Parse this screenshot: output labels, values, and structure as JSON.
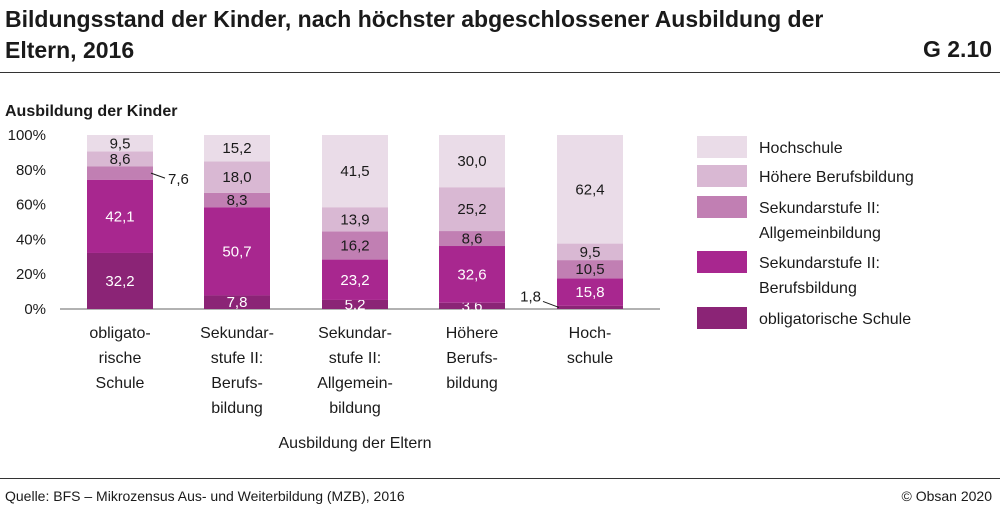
{
  "header": {
    "title": "Bildungsstand der Kinder, nach höchster abgeschlossener Ausbildung der Eltern, 2016",
    "code": "G 2.10"
  },
  "footer": {
    "source": "Quelle: BFS – Mikrozensus Aus- und Weiterbildung (MZB), 2016",
    "copyright": "© Obsan 2020"
  },
  "chart_data": {
    "type": "bar",
    "stacked": true,
    "ylabel": "Ausbildung der Kinder",
    "xlabel": "Ausbildung der Eltern",
    "ylim": [
      0,
      100
    ],
    "yticks": [
      "0%",
      "20%",
      "40%",
      "60%",
      "80%",
      "100%"
    ],
    "categories": [
      [
        "obligato-",
        "rische",
        "Schule"
      ],
      [
        "Sekundar-",
        "stufe II:",
        "Berufs-",
        "bildung"
      ],
      [
        "Sekundar-",
        "stufe II:",
        "Allgemein-",
        "bildung"
      ],
      [
        "Höhere",
        "Berufs-",
        "bildung"
      ],
      [
        "Hoch-",
        "schule"
      ]
    ],
    "series": [
      {
        "name": "obligatorische Schule",
        "color": "#8b2476",
        "values": [
          32.2,
          7.8,
          5.2,
          3.6,
          1.8
        ]
      },
      {
        "name": "Sekundarstufe II: Berufsbildung",
        "color": "#a8278f",
        "values": [
          42.1,
          50.7,
          23.2,
          32.6,
          15.8
        ]
      },
      {
        "name": "Sekundarstufe II: Allgemeinbildung",
        "color": "#c17fb3",
        "values": [
          7.6,
          8.3,
          16.2,
          8.6,
          10.5
        ]
      },
      {
        "name": "Höhere Berufsbildung",
        "color": "#d9b8d3",
        "values": [
          8.6,
          18.0,
          13.9,
          25.2,
          9.5
        ]
      },
      {
        "name": "Hochschule",
        "color": "#eadce8",
        "values": [
          9.5,
          15.2,
          41.5,
          30.0,
          62.4
        ]
      }
    ],
    "legend": [
      [
        "Hochschule"
      ],
      [
        "Höhere Berufsbildung"
      ],
      [
        "Sekundarstufe II:",
        "Allgemeinbildung"
      ],
      [
        "Sekundarstufe II:",
        "Berufsbildung"
      ],
      [
        "obligatorische Schule"
      ]
    ],
    "legend_position": "right"
  }
}
